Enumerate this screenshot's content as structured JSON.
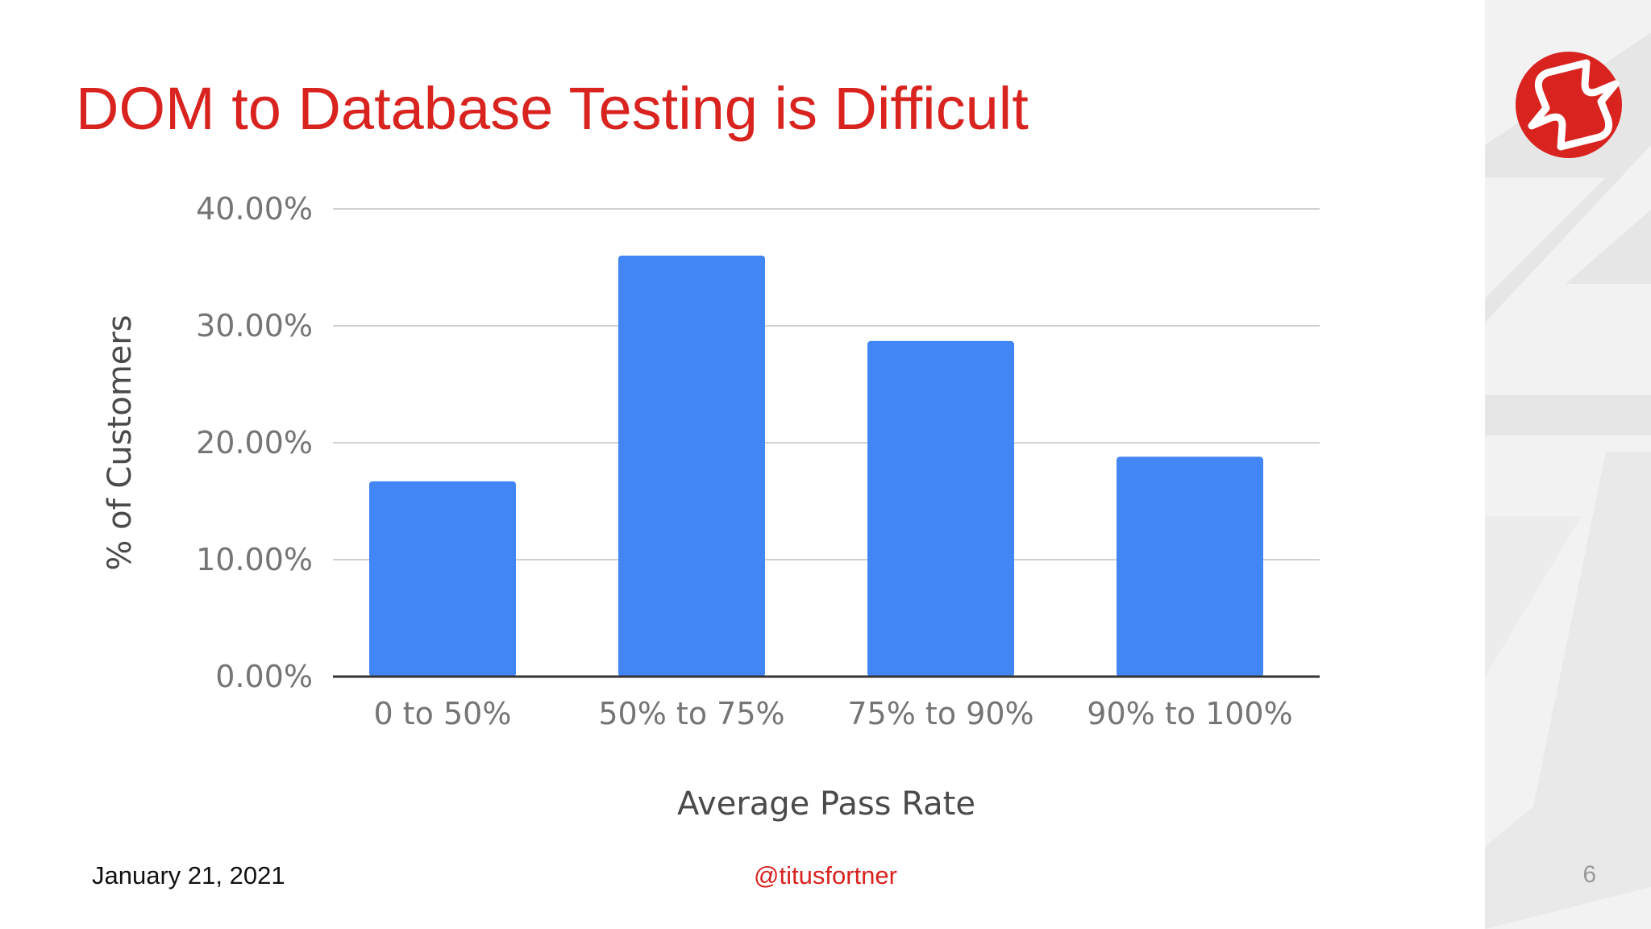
{
  "slide": {
    "title": "DOM to Database Testing is Difficult",
    "footer": {
      "date": "January 21, 2021",
      "handle": "@titusfortner",
      "page_number": "6"
    },
    "logo_icon": "lightning-bolt-circle-icon",
    "colors": {
      "accent": "#d8231f",
      "bar": "#4285f4",
      "gridline": "#d0d0d0",
      "side_panel": "#f2f2f2"
    }
  },
  "chart_data": {
    "type": "bar",
    "categories": [
      "0 to 50%",
      "50% to 75%",
      "75% to 90%",
      "90% to 100%"
    ],
    "values": [
      16.7,
      36.0,
      28.7,
      18.8
    ],
    "ylim": [
      0,
      40
    ],
    "yticks": [
      "0.00%",
      "10.00%",
      "20.00%",
      "30.00%",
      "40.00%"
    ],
    "xlabel": "Average Pass Rate",
    "ylabel": "% of Customers",
    "grid": true,
    "legend": "none"
  }
}
